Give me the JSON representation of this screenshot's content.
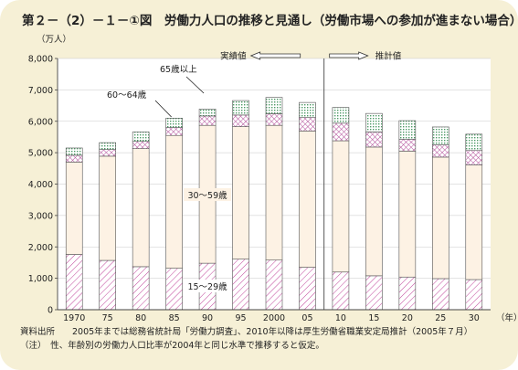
{
  "title": "第２－（2）－１－①図　労働力人口の推移と見通し（労働市場への参加が進まない場合）",
  "notes": {
    "source": "資料出所　　2005年までは総務省統計局「労働力調査」、2010年以降は厚生労働省職業安定局推計（2005年７月）",
    "asterisk": "（注）　性、年齢別の労働力人口比率が2004年と同じ水準で推移すると仮定。"
  },
  "colors": {
    "age_15_29": "#c0449a",
    "age_30_59": "#fdf2e4",
    "age_60_64": "#b14d98",
    "age_65_plus": "#4e9a67",
    "frame_bg": "#f6f0d6",
    "plot_bg": "#ffffff"
  },
  "chart_data": {
    "type": "bar",
    "stacked": true,
    "yunit": "（万人）",
    "xunit": "（年）",
    "ylim": [
      0,
      8000
    ],
    "yticks": [
      "0",
      "1,000",
      "2,000",
      "3,000",
      "4,000",
      "5,000",
      "6,000",
      "7,000",
      "8,000"
    ],
    "categories": [
      "1970",
      "75",
      "80",
      "85",
      "90",
      "95",
      "2000",
      "05",
      "10",
      "15",
      "20",
      "25",
      "30"
    ],
    "series": [
      {
        "name": "15～29歳",
        "values": [
          1760,
          1570,
          1370,
          1320,
          1480,
          1610,
          1580,
          1350,
          1200,
          1080,
          1040,
          990,
          960
        ]
      },
      {
        "name": "30～59歳",
        "values": [
          2940,
          3320,
          3760,
          4230,
          4390,
          4220,
          4290,
          4340,
          4180,
          4100,
          4010,
          3870,
          3650
        ]
      },
      {
        "name": "60～64歳",
        "values": [
          220,
          210,
          230,
          250,
          300,
          370,
          370,
          430,
          560,
          480,
          380,
          390,
          460
        ]
      },
      {
        "name": "65歳以上",
        "values": [
          230,
          220,
          300,
          300,
          220,
          460,
          520,
          480,
          500,
          590,
          590,
          570,
          520
        ]
      }
    ],
    "period_labels": {
      "actual": "実績値",
      "projected": "推計値"
    },
    "grid": true
  }
}
